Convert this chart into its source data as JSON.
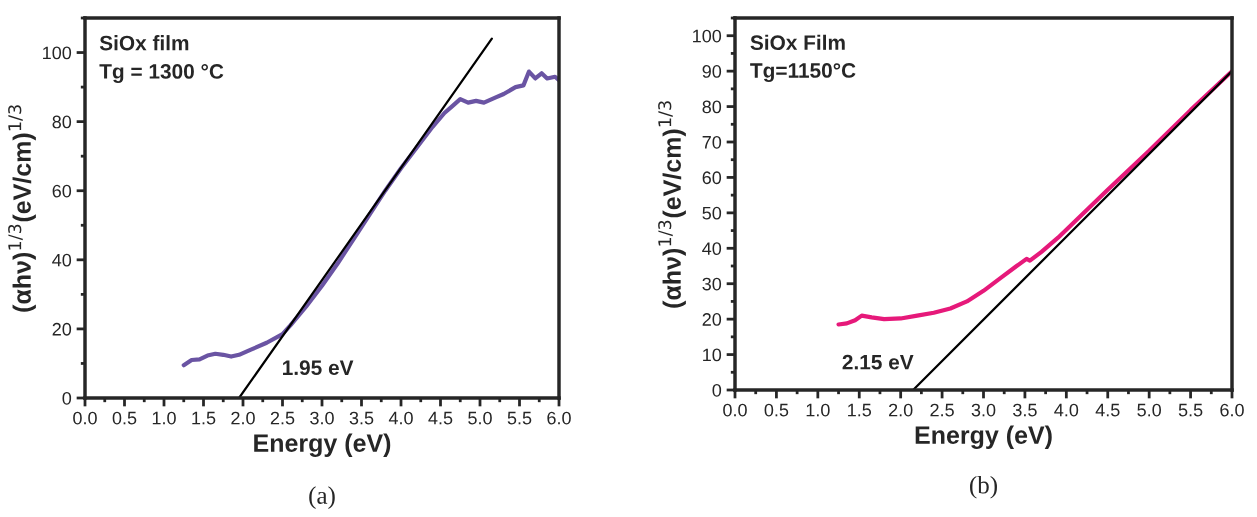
{
  "chart_data": [
    {
      "type": "line",
      "title": "(a)",
      "xlabel": "Energy (eV)",
      "ylabel": "(αhν)$^{1/3}$(eV/cm)$^{1/3}$",
      "annotations": [
        "SiOx film",
        "Tg = 1300 °C",
        "1.95 eV"
      ],
      "xlim": [
        0,
        6
      ],
      "ylim": [
        0,
        110
      ],
      "xticks": [
        {
          "value": 0,
          "label": "0.0"
        },
        {
          "value": 0.5,
          "label": "0.5"
        },
        {
          "value": 1,
          "label": "1.0"
        },
        {
          "value": 1.5,
          "label": "1.5"
        },
        {
          "value": 2,
          "label": "2.0"
        },
        {
          "value": 2.5,
          "label": "2.5"
        },
        {
          "value": 3,
          "label": "3.0"
        },
        {
          "value": 3.5,
          "label": "3.5"
        },
        {
          "value": 4,
          "label": "4.0"
        },
        {
          "value": 4.5,
          "label": "4.5"
        },
        {
          "value": 5,
          "label": "5.0"
        },
        {
          "value": 5.5,
          "label": "5.5"
        },
        {
          "value": 6,
          "label": "6.0"
        }
      ],
      "yticks": [
        0,
        20,
        40,
        60,
        80,
        100
      ],
      "grid": false,
      "legend": false,
      "series": [
        {
          "color": "#6a54a3",
          "x": [
            1.25,
            1.35,
            1.45,
            1.55,
            1.65,
            1.75,
            1.85,
            1.95,
            2.1,
            2.3,
            2.5,
            2.6,
            2.8,
            3.0,
            3.2,
            3.4,
            3.6,
            3.8,
            4.0,
            4.2,
            4.4,
            4.55,
            4.65,
            4.75,
            4.85,
            4.95,
            5.05,
            5.2,
            5.3,
            5.45,
            5.55,
            5.62,
            5.7,
            5.78,
            5.85,
            5.95,
            6.0
          ],
          "values": [
            9.5,
            11,
            11.2,
            12.3,
            12.8,
            12.5,
            12,
            12.5,
            14,
            16,
            18.5,
            21,
            26.5,
            32.5,
            39,
            46,
            53,
            60,
            66.5,
            72.5,
            78.5,
            82.5,
            84.5,
            86.5,
            85.5,
            86,
            85.5,
            87,
            88,
            90,
            90.5,
            94.5,
            92.5,
            94,
            92.5,
            93,
            92
          ]
        },
        {
          "color": "#000000",
          "x": [
            1.95,
            5.15
          ],
          "values": [
            0,
            104
          ]
        }
      ]
    },
    {
      "type": "line",
      "title": "(b)",
      "xlabel": "Energy (eV)",
      "ylabel": "(αhν)$^{1/3}$(eV/cm)$^{1/3}$",
      "annotations": [
        "SiOx Film",
        "Tg=1150°C",
        "2.15 eV"
      ],
      "xlim": [
        0,
        6
      ],
      "ylim": [
        0,
        105
      ],
      "xticks": [
        {
          "value": 0,
          "label": "0.0"
        },
        {
          "value": 0.5,
          "label": "0.5"
        },
        {
          "value": 1,
          "label": "1.0"
        },
        {
          "value": 1.5,
          "label": "1.5"
        },
        {
          "value": 2,
          "label": "2.0"
        },
        {
          "value": 2.5,
          "label": "2.5"
        },
        {
          "value": 3,
          "label": "3.0"
        },
        {
          "value": 3.5,
          "label": "3.5"
        },
        {
          "value": 4,
          "label": "4.0"
        },
        {
          "value": 4.5,
          "label": "4.5"
        },
        {
          "value": 5,
          "label": "5.0"
        },
        {
          "value": 5.5,
          "label": "5.5"
        },
        {
          "value": 6,
          "label": "6.0"
        }
      ],
      "yticks": [
        0,
        10,
        20,
        30,
        40,
        50,
        60,
        70,
        80,
        90,
        100
      ],
      "grid": false,
      "legend": false,
      "series": [
        {
          "color": "#e6197a",
          "x": [
            1.25,
            1.35,
            1.45,
            1.53,
            1.65,
            1.8,
            2.0,
            2.2,
            2.4,
            2.6,
            2.8,
            3.0,
            3.2,
            3.4,
            3.52,
            3.56,
            3.7,
            3.9,
            4.1,
            4.3,
            4.5,
            5.0,
            5.5,
            6.0
          ],
          "values": [
            18.5,
            18.8,
            19.7,
            21,
            20.5,
            20,
            20.2,
            21,
            21.8,
            23,
            25,
            28,
            31.5,
            35,
            37,
            36.5,
            39,
            43,
            47.5,
            52,
            56.5,
            67.5,
            79,
            90
          ]
        },
        {
          "color": "#000000",
          "x": [
            2.15,
            6.0
          ],
          "values": [
            0,
            90
          ]
        }
      ]
    }
  ]
}
